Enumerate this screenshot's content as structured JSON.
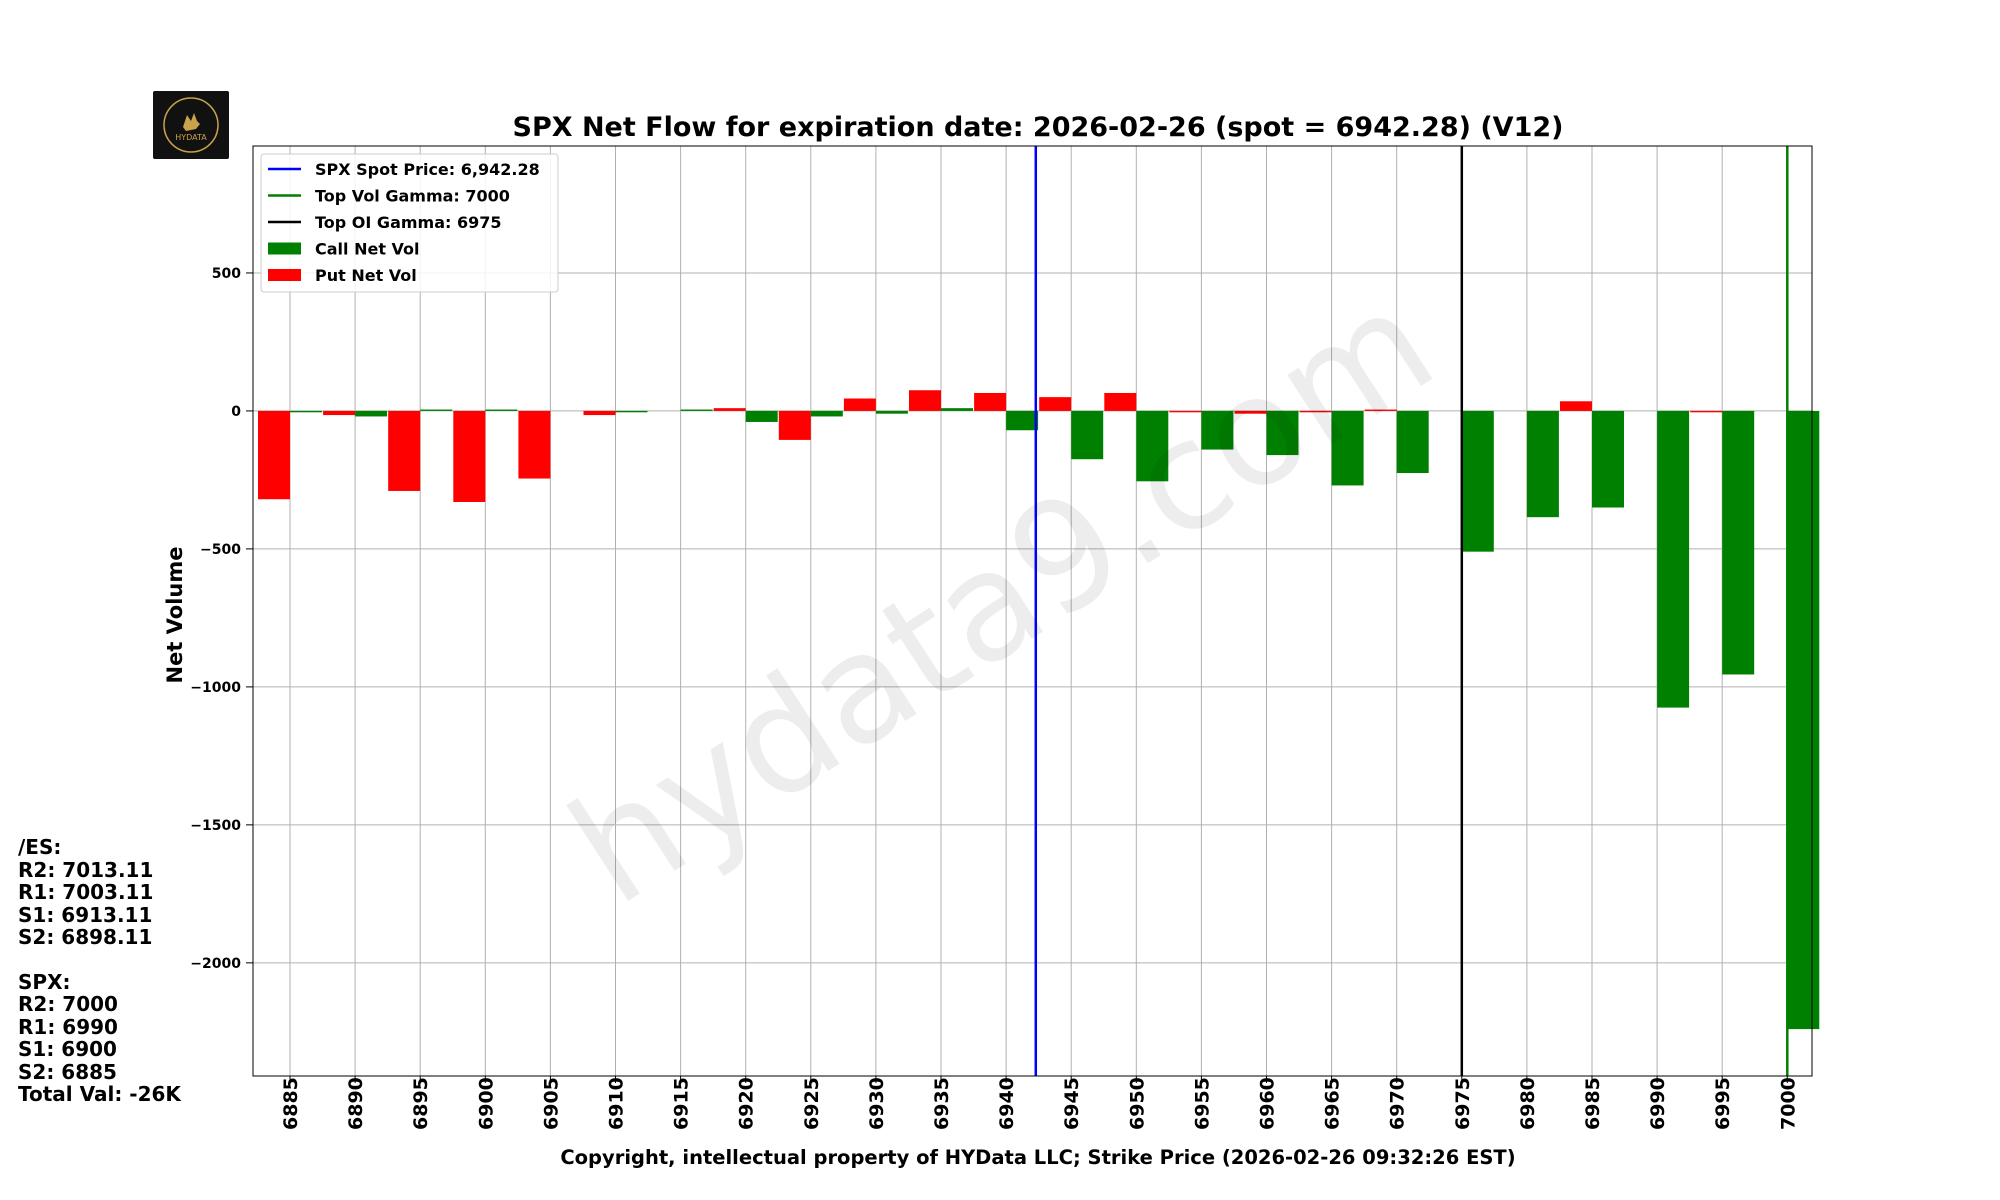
{
  "logo": {
    "text": "HYDATA"
  },
  "watermark": "hydata9.com",
  "side_levels": {
    "es_header": "/ES:",
    "es": [
      "R2: 7013.11",
      "R1: 7003.11",
      "S1: 6913.11",
      "S2: 6898.11"
    ],
    "spx_header": "SPX:",
    "spx": [
      "R2: 7000",
      "R1: 6990",
      "S1: 6900",
      "S2: 6885"
    ],
    "total": "Total Val: -26K"
  },
  "colors": {
    "call": "#008000",
    "put": "#ff0000",
    "spot": "#0000ff",
    "vol_gamma": "#008000",
    "oi_gamma": "#000000"
  },
  "chart_data": {
    "type": "bar",
    "title": "SPX Net Flow for expiration date: 2026-02-26 (spot = 6942.28) (V12)",
    "xlabel": "Copyright, intellectual property of HYData LLC; Strike Price (2026-02-26 09:32:26 EST)",
    "ylabel": "Net Volume",
    "ylim": [
      -2410,
      960
    ],
    "yticks": [
      500,
      0,
      -500,
      -1000,
      -1500,
      -2000
    ],
    "ytick_labels": [
      "500",
      "0",
      "−500",
      "−1000",
      "−1500",
      "−2000"
    ],
    "categories": [
      "6885",
      "6890",
      "6895",
      "6900",
      "6905",
      "6910",
      "6915",
      "6920",
      "6925",
      "6930",
      "6935",
      "6940",
      "6945",
      "6950",
      "6955",
      "6960",
      "6965",
      "6970",
      "6975",
      "6980",
      "6985",
      "6990",
      "6995",
      "7000"
    ],
    "series": [
      {
        "name": "Call Net Vol",
        "values": [
          -5,
          -20,
          5,
          5,
          0,
          -5,
          5,
          -40,
          -20,
          -10,
          10,
          -70,
          -175,
          -255,
          -140,
          -160,
          -270,
          -225,
          -510,
          -385,
          -350,
          -1075,
          -955,
          -2240
        ]
      },
      {
        "name": "Put Net Vol",
        "values": [
          -320,
          -15,
          -290,
          -330,
          -245,
          -15,
          0,
          10,
          -105,
          45,
          75,
          65,
          50,
          65,
          -5,
          -10,
          -5,
          5,
          0,
          0,
          35,
          0,
          -5,
          0
        ]
      }
    ],
    "vlines": [
      {
        "label": "SPX Spot Price: 6,942.28",
        "x": 6942.28,
        "color": "#0000ff"
      },
      {
        "label": "Top Vol Gamma: 7000",
        "x": 7000,
        "color": "#008000"
      },
      {
        "label": "Top OI Gamma: 6975",
        "x": 6975,
        "color": "#000000"
      }
    ],
    "legend": {
      "position": "top-left",
      "entries": [
        {
          "label": "SPX Spot Price: 6,942.28",
          "kind": "line",
          "color": "#0000ff"
        },
        {
          "label": "Top Vol Gamma: 7000",
          "kind": "line",
          "color": "#008000"
        },
        {
          "label": "Top OI Gamma: 6975",
          "kind": "line",
          "color": "#000000"
        },
        {
          "label": "Call Net Vol",
          "kind": "patch",
          "color": "#008000"
        },
        {
          "label": "Put Net Vol",
          "kind": "patch",
          "color": "#ff0000"
        }
      ]
    },
    "grid": true
  }
}
